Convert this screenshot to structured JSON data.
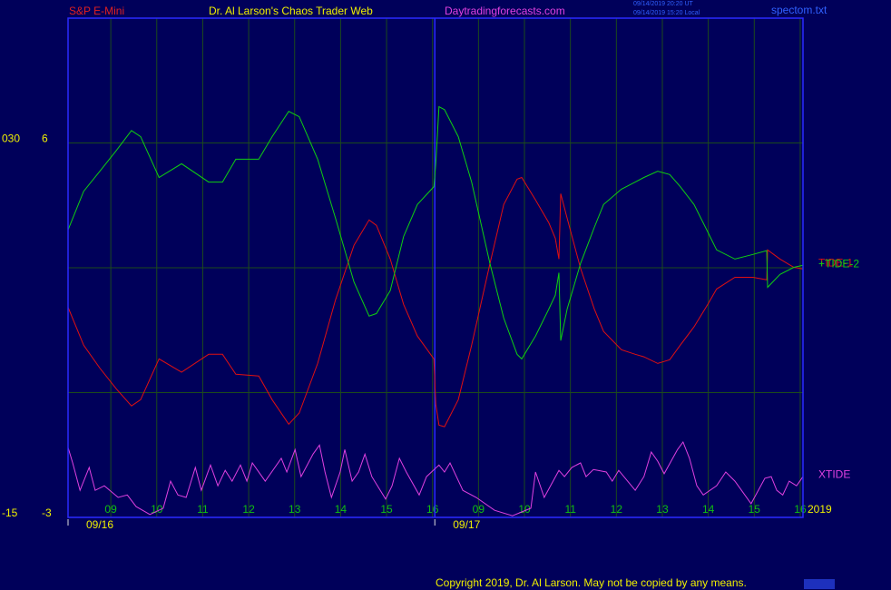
{
  "chart_data": {
    "type": "line",
    "title": "S&P E-Mini",
    "subtitle": "Dr. Al Larson's Chaos Trader Web",
    "site": "Daytradingforecasts.com",
    "stamp_ut": "09/14/2019 20:20 UT",
    "stamp_local": "09/14/2019 15:20 Local",
    "file": "spectom.txt",
    "year": "2019",
    "copyright": "Copyright 2019, Dr. Al Larson. May not be copied by any means.",
    "xlim": [
      -0.93,
      15.06
    ],
    "xticks": [
      {
        "value": 0,
        "label": "09"
      },
      {
        "value": 1,
        "label": "10"
      },
      {
        "value": 2,
        "label": "11"
      },
      {
        "value": 3,
        "label": "12"
      },
      {
        "value": 4,
        "label": "13"
      },
      {
        "value": 5,
        "label": "14"
      },
      {
        "value": 6,
        "label": "15"
      },
      {
        "value": 7,
        "label": "16"
      },
      {
        "value": 8,
        "label": "09"
      },
      {
        "value": 9,
        "label": "10"
      },
      {
        "value": 10,
        "label": "11"
      },
      {
        "value": 11,
        "label": "12"
      },
      {
        "value": 12,
        "label": "13"
      },
      {
        "value": 13,
        "label": "14"
      },
      {
        "value": 14,
        "label": "15"
      },
      {
        "value": 15,
        "label": "16"
      }
    ],
    "date_labels": [
      {
        "value": -0.93,
        "label": "09/16"
      },
      {
        "value": 7.05,
        "label": "09/17"
      }
    ],
    "ylim": [
      -3,
      9
    ],
    "yticks": [
      -3,
      {
        "value": 0,
        "label": null
      },
      {
        "value": 3,
        "label": null
      },
      6
    ],
    "y2lim": [
      -15,
      45
    ],
    "y2ticks": [
      -15,
      {
        "value": 30,
        "label": "030"
      }
    ],
    "grid": true,
    "x": [
      -0.93,
      -0.59,
      -0.24,
      0.12,
      0.45,
      0.65,
      1.05,
      1.54,
      2.13,
      2.43,
      2.72,
      3.22,
      3.51,
      3.87,
      4.1,
      4.5,
      4.89,
      5.29,
      5.62,
      5.78,
      6.08,
      6.37,
      6.67,
      7.03,
      7.07,
      7.14,
      7.26,
      7.56,
      7.85,
      8.25,
      8.55,
      8.84,
      8.94,
      9.24,
      9.53,
      9.67,
      9.75,
      9.79,
      9.93,
      10.22,
      10.52,
      10.72,
      11.11,
      11.41,
      11.6,
      11.9,
      12.16,
      12.39,
      12.69,
      12.99,
      13.18,
      13.58,
      13.97,
      14.27,
      14.29,
      14.56,
      14.86,
      15.06
    ],
    "series": [
      {
        "name": "TIDE-1",
        "color": "#e01010",
        "values": [
          2.05,
          1.14,
          0.59,
          0.09,
          -0.32,
          -0.17,
          0.81,
          0.49,
          0.92,
          0.92,
          0.44,
          0.4,
          -0.17,
          -0.76,
          -0.49,
          0.7,
          2.23,
          3.54,
          4.15,
          4.02,
          3.21,
          2.12,
          1.36,
          0.81,
          -0.28,
          -0.78,
          -0.82,
          -0.17,
          1.14,
          3.1,
          4.52,
          5.13,
          5.17,
          4.63,
          4.08,
          3.71,
          3.21,
          4.78,
          4.19,
          2.99,
          2.01,
          1.47,
          1.03,
          0.92,
          0.86,
          0.7,
          0.79,
          1.14,
          1.58,
          2.12,
          2.49,
          2.77,
          2.77,
          2.71,
          3.43,
          3.21,
          3.01,
          2.97
        ]
      },
      {
        "name": "+TIDE-2",
        "color": "#10d010",
        "values": [
          3.91,
          4.84,
          5.32,
          5.82,
          6.3,
          6.15,
          5.17,
          5.5,
          5.06,
          5.06,
          5.61,
          5.61,
          6.15,
          6.76,
          6.63,
          5.61,
          4.19,
          2.66,
          1.84,
          1.9,
          2.45,
          3.75,
          4.52,
          4.95,
          5.5,
          6.87,
          6.8,
          6.15,
          5.06,
          3.1,
          1.79,
          0.92,
          0.81,
          1.36,
          2.01,
          2.34,
          2.88,
          1.25,
          2.01,
          3.1,
          3.97,
          4.52,
          4.89,
          5.06,
          5.17,
          5.32,
          5.24,
          4.95,
          4.52,
          3.86,
          3.43,
          3.21,
          3.32,
          3.41,
          2.53,
          2.84,
          3.01,
          3.06
        ]
      },
      {
        "name": "XTIDE",
        "color": "#e040e0",
        "x": [
          -0.93,
          -0.83,
          -0.67,
          -0.47,
          -0.34,
          -0.14,
          0.16,
          0.36,
          0.55,
          0.85,
          1.14,
          1.3,
          1.46,
          1.64,
          1.84,
          1.97,
          2.17,
          2.33,
          2.49,
          2.64,
          2.82,
          2.96,
          3.08,
          3.36,
          3.71,
          3.83,
          4.01,
          4.14,
          4.4,
          4.54,
          4.66,
          4.8,
          4.99,
          5.09,
          5.25,
          5.39,
          5.53,
          5.68,
          5.98,
          6.12,
          6.28,
          6.43,
          6.71,
          6.87,
          7.14,
          7.26,
          7.38,
          7.66,
          7.95,
          8.35,
          8.74,
          9.14,
          9.24,
          9.43,
          9.75,
          9.87,
          10.03,
          10.22,
          10.34,
          10.5,
          10.78,
          10.91,
          11.05,
          11.41,
          11.6,
          11.76,
          11.9,
          12.04,
          12.33,
          12.45,
          12.59,
          12.75,
          12.89,
          13.18,
          13.38,
          13.58,
          13.93,
          14.23,
          14.37,
          14.49,
          14.62,
          14.76,
          14.92,
          15.06
        ],
        "values": [
          -1.32,
          -1.69,
          -2.35,
          -1.8,
          -2.35,
          -2.24,
          -2.52,
          -2.46,
          -2.74,
          -2.93,
          -2.78,
          -2.13,
          -2.46,
          -2.52,
          -1.8,
          -2.35,
          -1.74,
          -2.24,
          -1.87,
          -2.13,
          -1.74,
          -2.13,
          -1.69,
          -2.13,
          -1.58,
          -1.91,
          -1.37,
          -2.02,
          -1.48,
          -1.26,
          -1.91,
          -2.52,
          -1.91,
          -1.37,
          -2.13,
          -1.91,
          -1.48,
          -2.02,
          -2.56,
          -2.24,
          -1.58,
          -1.91,
          -2.46,
          -2.02,
          -1.74,
          -1.91,
          -1.69,
          -2.35,
          -2.52,
          -2.83,
          -2.96,
          -2.78,
          -1.91,
          -2.52,
          -1.87,
          -2.02,
          -1.8,
          -1.69,
          -2.02,
          -1.85,
          -1.91,
          -2.13,
          -1.87,
          -2.35,
          -2.02,
          -1.43,
          -1.65,
          -1.95,
          -1.37,
          -1.19,
          -1.58,
          -2.24,
          -2.46,
          -2.24,
          -1.91,
          -2.13,
          -2.67,
          -2.06,
          -2.02,
          -2.35,
          -2.46,
          -2.13,
          -2.24,
          -2.02
        ]
      }
    ]
  }
}
